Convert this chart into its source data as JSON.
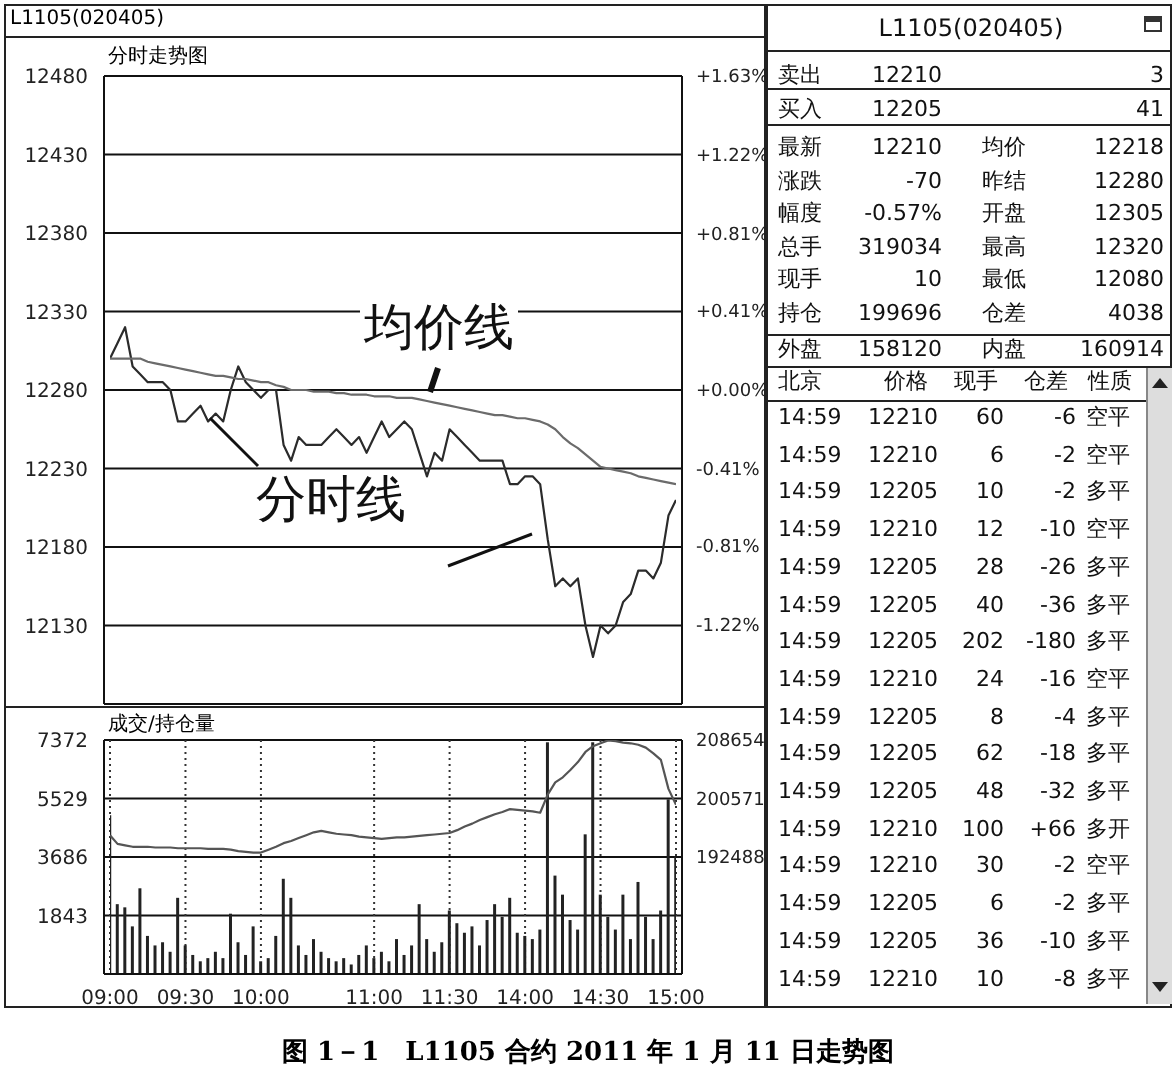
{
  "chart_data": [
    {
      "type": "line",
      "title": "分时走势图",
      "annotations": [
        "L1105(020405)",
        "图 1－1　L1105 合约 2011 年 1 月 11 日走势图"
      ],
      "categories": [
        null,
        null,
        null,
        null,
        null,
        null,
        null,
        null,
        null,
        null,
        null,
        null,
        null,
        null,
        null,
        null,
        null,
        null,
        null,
        null,
        null,
        null,
        null,
        null,
        null,
        null,
        null,
        null,
        null,
        null,
        null,
        null,
        null,
        null,
        null,
        null,
        null,
        null,
        null,
        null,
        null,
        null,
        null,
        null,
        null,
        null,
        null,
        null,
        null,
        null,
        null,
        null,
        null,
        null,
        null,
        null,
        null,
        null,
        null,
        null,
        null,
        null,
        null,
        null,
        null,
        null,
        null,
        null,
        null,
        null,
        null,
        null,
        null,
        null,
        null,
        null
      ],
      "tick_labels": "y",
      "ylim": [
        12080,
        12480
      ],
      "yticks": [
        12130,
        12180,
        12230,
        12280,
        12330,
        12380,
        12430,
        12480
      ],
      "y2lim": [
        -1.63,
        1.63
      ],
      "y2ticks": [
        {
          "value": -1.22,
          "label": "-1.22%"
        },
        {
          "value": -0.81,
          "label": "-0.81%"
        },
        {
          "value": -0.41,
          "label": "-0.41%"
        },
        {
          "value": 0,
          "label": "+0.00%"
        },
        {
          "value": 0.41,
          "label": "+0.41%"
        },
        {
          "value": 0.81,
          "label": "+0.81%"
        },
        {
          "value": 1.22,
          "label": "+1.22%"
        },
        {
          "value": 1.63,
          "label": "+1.63%"
        }
      ],
      "grid": true,
      "series": [
        {
          "name": "分时线",
          "color": "#2b2b2b",
          "values": [
            12300,
            12310,
            12320,
            12295,
            12290,
            12285,
            12285,
            12285,
            12280,
            12260,
            12260,
            12265,
            12270,
            12260,
            12265,
            12260,
            12280,
            12295,
            12285,
            12280,
            12275,
            12280,
            12280,
            12245,
            12235,
            12250,
            12245,
            12245,
            12245,
            12250,
            12255,
            12250,
            12245,
            12250,
            12240,
            12250,
            12260,
            12250,
            12255,
            12260,
            12255,
            12240,
            12225,
            12240,
            12235,
            12255,
            12250,
            12245,
            12240,
            12235,
            12235,
            12235,
            12235,
            12220,
            12220,
            12225,
            12225,
            12220,
            12185,
            12155,
            12160,
            12155,
            12160,
            12130,
            12110,
            12130,
            12125,
            12130,
            12145,
            12150,
            12165,
            12165,
            12160,
            12170,
            12200,
            12210
          ]
        },
        {
          "name": "均价线",
          "color": "#6b6b6b",
          "values": [
            12300,
            12300,
            12300,
            12300,
            12300,
            12298,
            12297,
            12296,
            12295,
            12294,
            12293,
            12292,
            12291,
            12290,
            12289,
            12289,
            12288,
            12287,
            12287,
            12286,
            12285,
            12285,
            12283,
            12282,
            12280,
            12280,
            12280,
            12279,
            12279,
            12279,
            12278,
            12278,
            12277,
            12277,
            12277,
            12276,
            12276,
            12276,
            12275,
            12275,
            12275,
            12274,
            12273,
            12272,
            12271,
            12270,
            12269,
            12268,
            12267,
            12266,
            12265,
            12264,
            12264,
            12263,
            12262,
            12262,
            12261,
            12260,
            12258,
            12255,
            12250,
            12246,
            12243,
            12239,
            12235,
            12231,
            12230,
            12229,
            12228,
            12227,
            12225,
            12224,
            12223,
            12222,
            12221,
            12220
          ]
        }
      ]
    },
    {
      "type": "bar",
      "title": "成交/持仓量",
      "categories": [
        "09:00",
        null,
        null,
        null,
        null,
        null,
        null,
        null,
        null,
        null,
        "09:30",
        null,
        null,
        null,
        null,
        null,
        null,
        null,
        null,
        null,
        "10:00",
        null,
        null,
        null,
        null,
        null,
        null,
        null,
        null,
        null,
        null,
        null,
        null,
        null,
        null,
        "11:00",
        null,
        null,
        null,
        null,
        null,
        null,
        null,
        null,
        null,
        "11:30",
        null,
        null,
        null,
        null,
        null,
        null,
        null,
        null,
        null,
        "14:00",
        null,
        null,
        null,
        null,
        null,
        null,
        null,
        null,
        null,
        "14:30",
        null,
        null,
        null,
        null,
        null,
        null,
        null,
        null,
        null,
        "15:00"
      ],
      "ylim": [
        0,
        7372
      ],
      "yticks": [
        1843,
        3686,
        5529,
        7372
      ],
      "y2lim": [
        176322,
        208654
      ],
      "y2ticks": [
        192488,
        200571,
        208654
      ],
      "grid": true,
      "series": [
        {
          "color": "#222222",
          "values": [
            5000,
            2200,
            2100,
            1500,
            2700,
            1200,
            900,
            1000,
            700,
            2400,
            900,
            600,
            400,
            500,
            700,
            500,
            1900,
            1000,
            600,
            1500,
            400,
            500,
            1200,
            3000,
            2400,
            900,
            600,
            1100,
            700,
            500,
            400,
            500,
            300,
            600,
            900,
            500,
            700,
            400,
            1100,
            600,
            900,
            2200,
            1100,
            700,
            1000,
            2000,
            1600,
            1300,
            1500,
            900,
            1700,
            2200,
            1800,
            2400,
            1300,
            1200,
            1100,
            1400,
            7300,
            3100,
            2500,
            1700,
            1400,
            4400,
            7300,
            2500,
            1800,
            1400,
            2500,
            1100,
            2900,
            1800,
            1100,
            2000,
            5500,
            3700
          ]
        },
        {
          "type": "line",
          "axis": "y2",
          "color": "#555555",
          "values": [
            195500,
            194300,
            194100,
            193900,
            193900,
            193900,
            193800,
            193800,
            193800,
            193700,
            193700,
            193700,
            193700,
            193600,
            193600,
            193600,
            193500,
            193300,
            193200,
            193100,
            193100,
            193500,
            193900,
            194400,
            194700,
            195100,
            195500,
            195900,
            196100,
            195900,
            195700,
            195600,
            195500,
            195300,
            195200,
            195100,
            195000,
            195100,
            195200,
            195200,
            195300,
            195400,
            195500,
            195600,
            195700,
            195800,
            196200,
            196700,
            197100,
            197600,
            198000,
            198400,
            198700,
            199100,
            199000,
            198900,
            198800,
            198600,
            201100,
            202800,
            203500,
            204500,
            205600,
            207000,
            207800,
            208200,
            208600,
            208500,
            208300,
            208200,
            208000,
            207600,
            206800,
            205900,
            201900,
            199700
          ]
        }
      ]
    },
    {
      "type": "other",
      "title": "L1105(020405)",
      "categories": [
        "北京",
        "价格",
        "现手",
        "仓差",
        "性质"
      ],
      "cell_labels": [
        [
          "卖出",
          "12210",
          "3"
        ],
        [
          "买入",
          "12205",
          "41"
        ],
        [
          "最新",
          "12210",
          "均价",
          "12218"
        ],
        [
          "涨跌",
          "-70",
          "昨结",
          "12280"
        ],
        [
          "幅度",
          "-0.57%",
          "开盘",
          "12305"
        ],
        [
          "总手",
          "319034",
          "最高",
          "12320"
        ],
        [
          "现手",
          "10",
          "最低",
          "12080"
        ],
        [
          "持仓",
          "199696",
          "仓差",
          "4038"
        ],
        [
          "外盘",
          "158120",
          "内盘",
          "160914"
        ],
        [
          "14:59",
          "12210",
          "60",
          "-6",
          "空平"
        ],
        [
          "14:59",
          "12210",
          "6",
          "-2",
          "空平"
        ],
        [
          "14:59",
          "12205",
          "10",
          "-2",
          "多平"
        ],
        [
          "14:59",
          "12210",
          "12",
          "-10",
          "空平"
        ],
        [
          "14:59",
          "12205",
          "28",
          "-26",
          "多平"
        ],
        [
          "14:59",
          "12205",
          "40",
          "-36",
          "多平"
        ],
        [
          "14:59",
          "12205",
          "202",
          "-180",
          "多平"
        ],
        [
          "14:59",
          "12210",
          "24",
          "-16",
          "空平"
        ],
        [
          "14:59",
          "12205",
          "8",
          "-4",
          "多平"
        ],
        [
          "14:59",
          "12205",
          "62",
          "-18",
          "多平"
        ],
        [
          "14:59",
          "12205",
          "48",
          "-32",
          "多平"
        ],
        [
          "14:59",
          "12210",
          "100",
          "+66",
          "多开"
        ],
        [
          "14:59",
          "12210",
          "30",
          "-2",
          "空平"
        ],
        [
          "14:59",
          "12205",
          "6",
          "-2",
          "多平"
        ],
        [
          "14:59",
          "12205",
          "36",
          "-10",
          "多平"
        ],
        [
          "14:59",
          "12210",
          "10",
          "-8",
          "多平"
        ]
      ]
    }
  ]
}
